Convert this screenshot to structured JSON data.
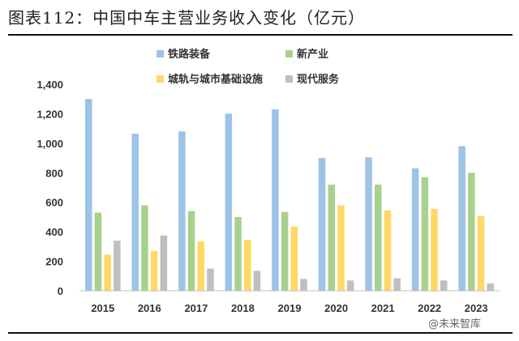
{
  "header": {
    "title": "图表112：中国中车主营业务收入变化（亿元）"
  },
  "watermark": "@未来智库",
  "chart_data": {
    "type": "bar",
    "title": "图表112：中国中车主营业务收入变化（亿元）",
    "xlabel": "",
    "ylabel": "",
    "ylim": [
      0,
      1400
    ],
    "yticks": [
      0,
      200,
      400,
      600,
      800,
      1000,
      1200,
      1400
    ],
    "ytick_labels": [
      "0",
      "200",
      "400",
      "600",
      "800",
      "1,000",
      "1,200",
      "1,400"
    ],
    "categories": [
      "2015",
      "2016",
      "2017",
      "2018",
      "2019",
      "2020",
      "2021",
      "2022",
      "2023"
    ],
    "series": [
      {
        "name": "铁路装备",
        "color": "#9dc3e6",
        "values": [
          1300,
          1065,
          1080,
          1200,
          1230,
          900,
          905,
          830,
          980
        ]
      },
      {
        "name": "新产业",
        "color": "#a9d18e",
        "values": [
          530,
          580,
          540,
          500,
          535,
          720,
          720,
          770,
          800
        ]
      },
      {
        "name": "城轨与城市基础设施",
        "color": "#ffd966",
        "values": [
          245,
          270,
          335,
          345,
          435,
          580,
          545,
          555,
          505
        ]
      },
      {
        "name": "现代服务",
        "color": "#bfbfbf",
        "values": [
          340,
          375,
          150,
          135,
          80,
          70,
          85,
          70,
          50
        ]
      }
    ],
    "legend_position": "top",
    "grid": false
  }
}
